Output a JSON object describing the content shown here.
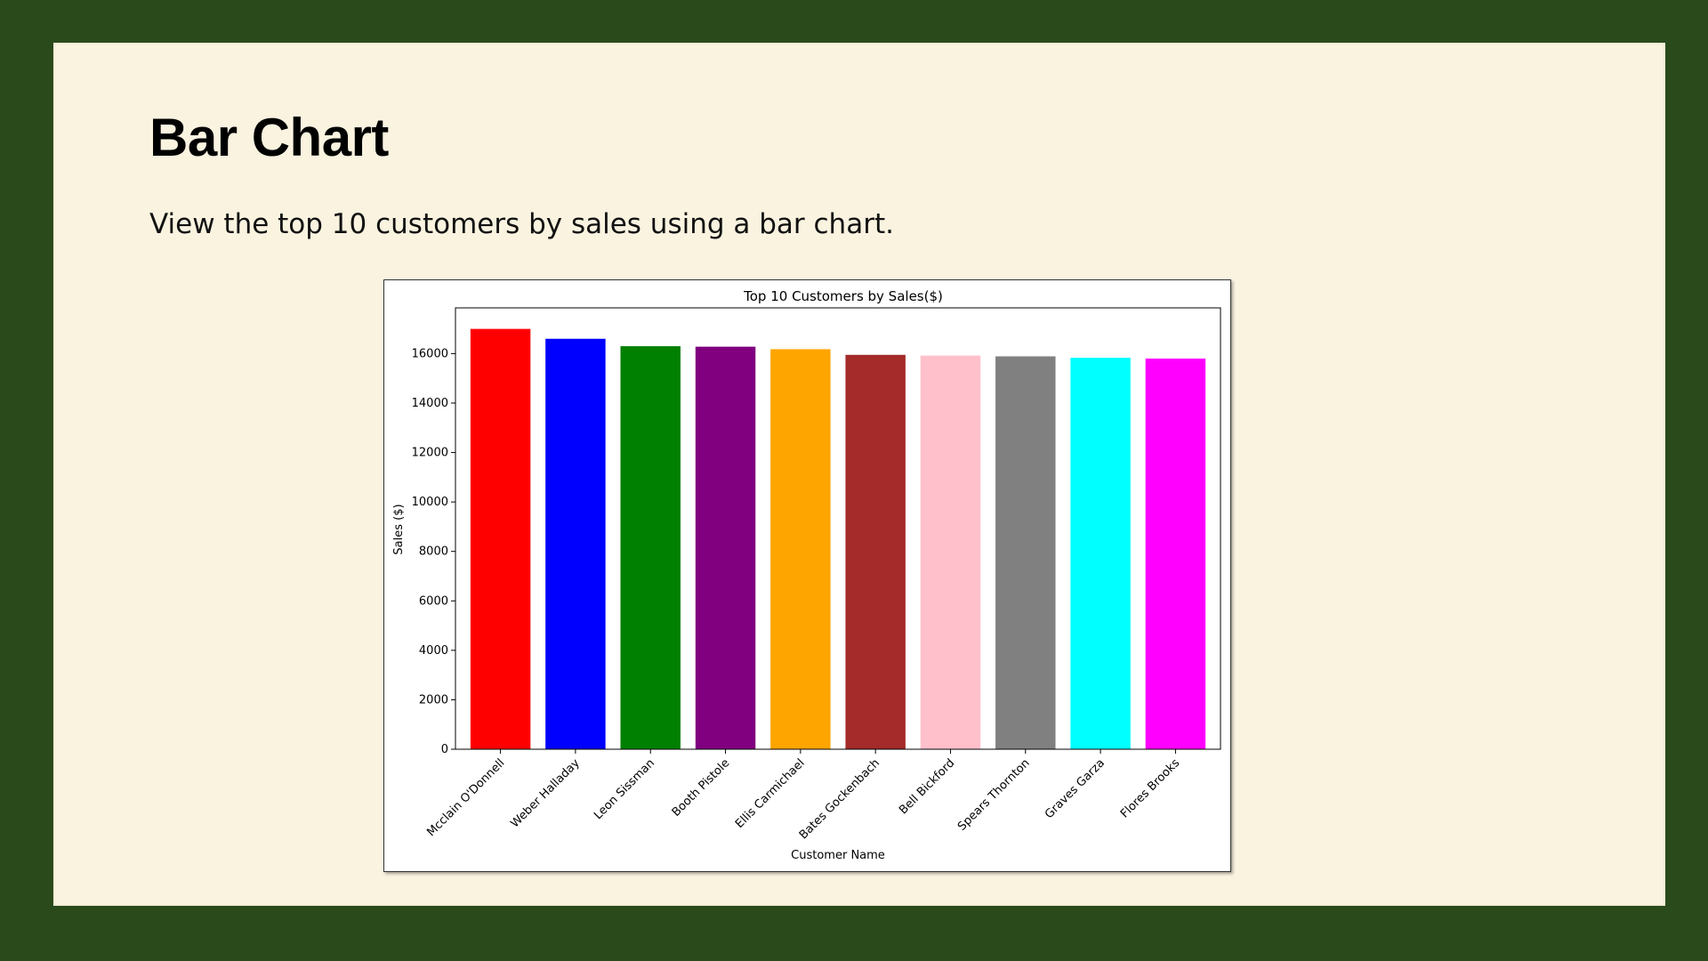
{
  "slide": {
    "title": "Bar Chart",
    "subtitle": "View the top 10 customers by sales using a bar chart."
  },
  "chart_data": {
    "type": "bar",
    "title": "Top 10 Customers by Sales($)",
    "xlabel": "Customer Name",
    "ylabel": "Sales ($)",
    "ylim": [
      0,
      17850
    ],
    "yticks": [
      0,
      2000,
      4000,
      6000,
      8000,
      10000,
      12000,
      14000,
      16000
    ],
    "categories": [
      "Mcclain O'Donnell",
      "Weber Halladay",
      "Leon Sissman",
      "Booth Pistole",
      "Ellis Carmichael",
      "Bates Gockenbach",
      "Bell Bickford",
      "Spears Thornton",
      "Graves Garza",
      "Flores Brooks"
    ],
    "values": [
      17000,
      16600,
      16300,
      16280,
      16180,
      15950,
      15920,
      15890,
      15830,
      15800
    ],
    "colors": [
      "#ff0000",
      "#0000ff",
      "#008000",
      "#800080",
      "#ffa500",
      "#a52a2a",
      "#ffc0cb",
      "#808080",
      "#00ffff",
      "#ff00ff"
    ],
    "grid": false,
    "legend": "none"
  }
}
